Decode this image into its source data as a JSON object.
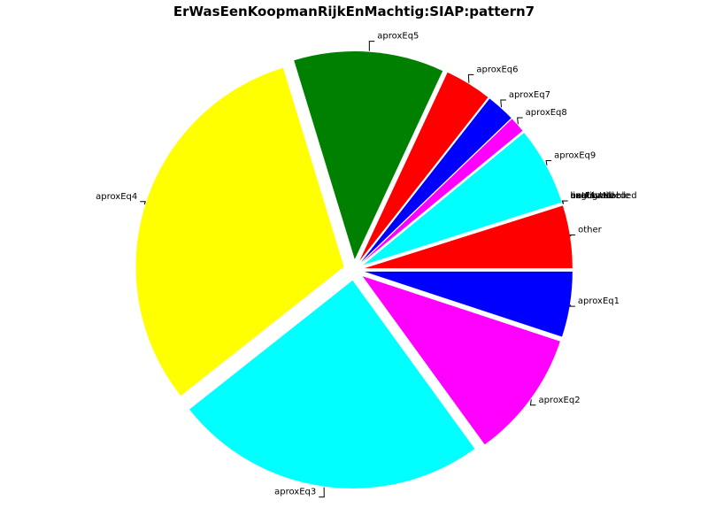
{
  "chart_data": {
    "type": "pie",
    "title": "ErWasEenKoopmanRijkEnMachtig:SIAP:pattern7",
    "slices": [
      {
        "label": "other",
        "value": 4.8,
        "color": "#ff0000"
      },
      {
        "label": "bestAvailable",
        "value": 0,
        "color": "#0000ff"
      },
      {
        "label": "linguistNeeded",
        "value": 0,
        "color": "#ff00ff"
      },
      {
        "label": "notFound",
        "value": 0,
        "color": "#00ffff"
      },
      {
        "label": "exact",
        "value": 0,
        "color": "#ffff00"
      },
      {
        "label": "unaligned",
        "value": 0,
        "color": "#008000"
      },
      {
        "label": "aproxEq9",
        "value": 6.0,
        "color": "#00ffff"
      },
      {
        "label": "aproxEq8",
        "value": 1.2,
        "color": "#ff00ff"
      },
      {
        "label": "aproxEq7",
        "value": 2.2,
        "color": "#0000ff"
      },
      {
        "label": "aproxEq6",
        "value": 3.6,
        "color": "#ff0000"
      },
      {
        "label": "aproxEq5",
        "value": 11.5,
        "color": "#008000"
      },
      {
        "label": "aproxEq4",
        "value": 30.5,
        "color": "#ffff00"
      },
      {
        "label": "aproxEq3",
        "value": 24.0,
        "color": "#00ffff"
      },
      {
        "label": "aproxEq2",
        "value": 9.8,
        "color": "#ff00ff"
      },
      {
        "label": "aproxEq1",
        "value": 5.0,
        "color": "#0000ff"
      }
    ]
  }
}
